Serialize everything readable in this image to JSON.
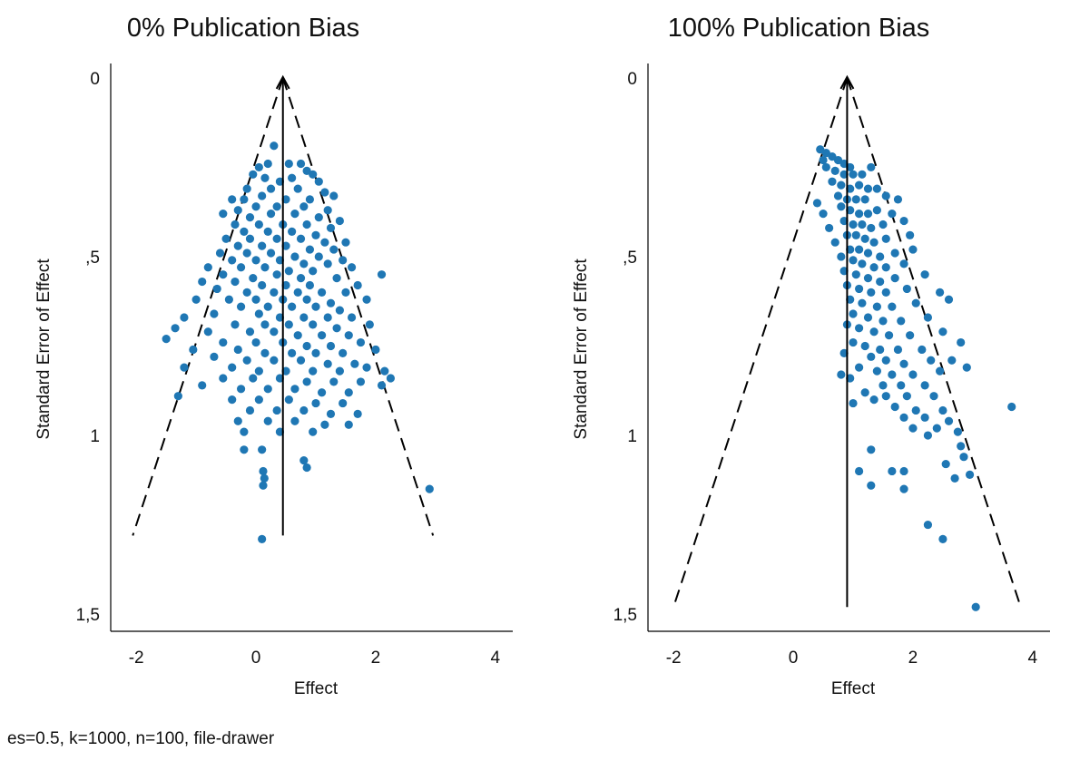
{
  "caption": "es=0.5, k=1000, n=100, file-drawer",
  "colors": {
    "points": "#1f77b4",
    "axes": "#000000"
  },
  "chart_data": [
    {
      "type": "scatter",
      "title": "0% Publication Bias",
      "xlabel": "Effect",
      "ylabel": "Standard Error of Effect",
      "xlim": [
        -2.2,
        4.2
      ],
      "ylim": [
        1.52,
        -0.02
      ],
      "y_inverted": true,
      "xticks": [
        -2,
        0,
        2,
        4
      ],
      "xtick_labels": [
        "-2",
        "0",
        "2",
        "4"
      ],
      "yticks": [
        0,
        0.5,
        1,
        1.5
      ],
      "ytick_labels": [
        "0",
        ",5",
        "1",
        "1,5"
      ],
      "funnel": {
        "center": 0.45,
        "se_max": 1.28
      },
      "points": [
        [
          0.3,
          0.19
        ],
        [
          0.05,
          0.25
        ],
        [
          0.2,
          0.24
        ],
        [
          0.55,
          0.24
        ],
        [
          0.75,
          0.24
        ],
        [
          0.85,
          0.26
        ],
        [
          0.95,
          0.27
        ],
        [
          -0.05,
          0.27
        ],
        [
          0.15,
          0.28
        ],
        [
          0.4,
          0.29
        ],
        [
          0.6,
          0.28
        ],
        [
          1.05,
          0.29
        ],
        [
          -0.15,
          0.31
        ],
        [
          0.25,
          0.31
        ],
        [
          0.7,
          0.31
        ],
        [
          1.15,
          0.32
        ],
        [
          1.3,
          0.33
        ],
        [
          -0.4,
          0.34
        ],
        [
          -0.2,
          0.34
        ],
        [
          0.1,
          0.33
        ],
        [
          0.5,
          0.34
        ],
        [
          0.9,
          0.34
        ],
        [
          -0.3,
          0.37
        ],
        [
          0.0,
          0.36
        ],
        [
          0.35,
          0.36
        ],
        [
          0.8,
          0.36
        ],
        [
          1.2,
          0.37
        ],
        [
          -0.55,
          0.38
        ],
        [
          -0.1,
          0.39
        ],
        [
          0.25,
          0.38
        ],
        [
          0.65,
          0.38
        ],
        [
          1.05,
          0.39
        ],
        [
          1.4,
          0.4
        ],
        [
          -0.35,
          0.41
        ],
        [
          0.05,
          0.41
        ],
        [
          0.45,
          0.41
        ],
        [
          0.85,
          0.41
        ],
        [
          1.25,
          0.42
        ],
        [
          -0.2,
          0.43
        ],
        [
          0.2,
          0.43
        ],
        [
          0.6,
          0.43
        ],
        [
          1.0,
          0.44
        ],
        [
          -0.5,
          0.45
        ],
        [
          -0.1,
          0.45
        ],
        [
          0.35,
          0.45
        ],
        [
          0.75,
          0.45
        ],
        [
          1.15,
          0.46
        ],
        [
          1.5,
          0.46
        ],
        [
          -0.3,
          0.47
        ],
        [
          0.1,
          0.47
        ],
        [
          0.5,
          0.47
        ],
        [
          0.9,
          0.48
        ],
        [
          1.3,
          0.48
        ],
        [
          -0.6,
          0.49
        ],
        [
          -0.15,
          0.49
        ],
        [
          0.25,
          0.49
        ],
        [
          0.65,
          0.5
        ],
        [
          1.05,
          0.5
        ],
        [
          1.45,
          0.51
        ],
        [
          -0.4,
          0.51
        ],
        [
          0.0,
          0.51
        ],
        [
          0.4,
          0.51
        ],
        [
          0.8,
          0.52
        ],
        [
          1.2,
          0.52
        ],
        [
          -0.8,
          0.53
        ],
        [
          -0.25,
          0.53
        ],
        [
          0.15,
          0.53
        ],
        [
          0.55,
          0.54
        ],
        [
          0.95,
          0.54
        ],
        [
          1.6,
          0.53
        ],
        [
          -0.55,
          0.55
        ],
        [
          -0.05,
          0.56
        ],
        [
          0.35,
          0.55
        ],
        [
          0.75,
          0.56
        ],
        [
          1.35,
          0.56
        ],
        [
          2.1,
          0.55
        ],
        [
          -0.9,
          0.57
        ],
        [
          -0.35,
          0.57
        ],
        [
          0.1,
          0.58
        ],
        [
          0.5,
          0.58
        ],
        [
          0.9,
          0.58
        ],
        [
          1.7,
          0.58
        ],
        [
          -0.65,
          0.59
        ],
        [
          -0.15,
          0.6
        ],
        [
          0.3,
          0.6
        ],
        [
          0.7,
          0.6
        ],
        [
          1.1,
          0.6
        ],
        [
          1.5,
          0.6
        ],
        [
          -1.0,
          0.62
        ],
        [
          -0.45,
          0.62
        ],
        [
          0.0,
          0.62
        ],
        [
          0.45,
          0.62
        ],
        [
          0.85,
          0.62
        ],
        [
          1.25,
          0.63
        ],
        [
          1.85,
          0.62
        ],
        [
          -0.25,
          0.64
        ],
        [
          0.2,
          0.64
        ],
        [
          0.6,
          0.64
        ],
        [
          1.0,
          0.64
        ],
        [
          1.4,
          0.65
        ],
        [
          -0.7,
          0.66
        ],
        [
          -1.2,
          0.67
        ],
        [
          0.05,
          0.66
        ],
        [
          0.4,
          0.67
        ],
        [
          0.8,
          0.67
        ],
        [
          1.2,
          0.67
        ],
        [
          1.6,
          0.67
        ],
        [
          -0.35,
          0.69
        ],
        [
          0.15,
          0.69
        ],
        [
          0.55,
          0.69
        ],
        [
          0.95,
          0.69
        ],
        [
          1.35,
          0.7
        ],
        [
          1.9,
          0.69
        ],
        [
          -1.35,
          0.7
        ],
        [
          -0.8,
          0.71
        ],
        [
          -0.1,
          0.71
        ],
        [
          0.3,
          0.71
        ],
        [
          0.7,
          0.72
        ],
        [
          1.1,
          0.72
        ],
        [
          1.55,
          0.72
        ],
        [
          -1.5,
          0.73
        ],
        [
          -0.55,
          0.74
        ],
        [
          0.0,
          0.74
        ],
        [
          0.45,
          0.74
        ],
        [
          0.85,
          0.75
        ],
        [
          1.25,
          0.75
        ],
        [
          1.75,
          0.74
        ],
        [
          -1.05,
          0.76
        ],
        [
          -0.3,
          0.76
        ],
        [
          0.15,
          0.77
        ],
        [
          0.6,
          0.77
        ],
        [
          1.0,
          0.77
        ],
        [
          1.45,
          0.77
        ],
        [
          2.0,
          0.76
        ],
        [
          -0.7,
          0.78
        ],
        [
          -0.15,
          0.79
        ],
        [
          0.3,
          0.79
        ],
        [
          0.75,
          0.79
        ],
        [
          1.2,
          0.8
        ],
        [
          1.65,
          0.8
        ],
        [
          -1.2,
          0.81
        ],
        [
          -0.4,
          0.81
        ],
        [
          0.05,
          0.82
        ],
        [
          0.5,
          0.82
        ],
        [
          0.95,
          0.82
        ],
        [
          1.4,
          0.82
        ],
        [
          1.85,
          0.81
        ],
        [
          2.15,
          0.82
        ],
        [
          -0.55,
          0.84
        ],
        [
          -0.05,
          0.84
        ],
        [
          0.4,
          0.84
        ],
        [
          0.85,
          0.85
        ],
        [
          1.3,
          0.85
        ],
        [
          1.75,
          0.85
        ],
        [
          2.25,
          0.84
        ],
        [
          -0.9,
          0.86
        ],
        [
          -0.25,
          0.87
        ],
        [
          0.2,
          0.87
        ],
        [
          0.65,
          0.87
        ],
        [
          1.1,
          0.88
        ],
        [
          1.55,
          0.88
        ],
        [
          2.1,
          0.86
        ],
        [
          -1.3,
          0.89
        ],
        [
          -0.4,
          0.9
        ],
        [
          0.05,
          0.9
        ],
        [
          0.55,
          0.9
        ],
        [
          1.0,
          0.91
        ],
        [
          1.45,
          0.91
        ],
        [
          -0.1,
          0.93
        ],
        [
          0.35,
          0.93
        ],
        [
          0.8,
          0.93
        ],
        [
          1.25,
          0.94
        ],
        [
          1.7,
          0.94
        ],
        [
          -0.3,
          0.96
        ],
        [
          0.2,
          0.96
        ],
        [
          0.65,
          0.96
        ],
        [
          1.15,
          0.97
        ],
        [
          1.55,
          0.97
        ],
        [
          -0.2,
          0.99
        ],
        [
          0.4,
          0.99
        ],
        [
          0.95,
          0.99
        ],
        [
          -0.2,
          1.04
        ],
        [
          0.1,
          1.04
        ],
        [
          0.8,
          1.07
        ],
        [
          0.12,
          1.1
        ],
        [
          0.85,
          1.09
        ],
        [
          0.14,
          1.12
        ],
        [
          0.12,
          1.14
        ],
        [
          2.9,
          1.15
        ],
        [
          0.1,
          1.29
        ]
      ]
    },
    {
      "type": "scatter",
      "title": "100% Publication Bias",
      "xlabel": "Effect",
      "ylabel": "Standard Error of Effect",
      "xlim": [
        -2.2,
        4.2
      ],
      "ylim": [
        1.52,
        -0.02
      ],
      "y_inverted": true,
      "xticks": [
        -2,
        0,
        2,
        4
      ],
      "xtick_labels": [
        "-2",
        "0",
        "2",
        "4"
      ],
      "yticks": [
        0,
        0.5,
        1,
        1.5
      ],
      "ytick_labels": [
        "0",
        ",5",
        "1",
        "1,5"
      ],
      "funnel": {
        "center": 0.9,
        "se_max": 1.48
      },
      "points": [
        [
          0.45,
          0.2
        ],
        [
          0.55,
          0.21
        ],
        [
          0.5,
          0.23
        ],
        [
          0.65,
          0.22
        ],
        [
          0.75,
          0.23
        ],
        [
          0.85,
          0.24
        ],
        [
          0.95,
          0.25
        ],
        [
          0.55,
          0.25
        ],
        [
          0.7,
          0.26
        ],
        [
          0.85,
          0.27
        ],
        [
          1.0,
          0.27
        ],
        [
          1.15,
          0.27
        ],
        [
          1.3,
          0.25
        ],
        [
          0.65,
          0.29
        ],
        [
          0.8,
          0.3
        ],
        [
          0.95,
          0.31
        ],
        [
          1.1,
          0.3
        ],
        [
          1.25,
          0.31
        ],
        [
          1.4,
          0.31
        ],
        [
          0.75,
          0.33
        ],
        [
          0.9,
          0.34
        ],
        [
          1.05,
          0.34
        ],
        [
          1.2,
          0.34
        ],
        [
          1.55,
          0.33
        ],
        [
          1.75,
          0.34
        ],
        [
          0.4,
          0.35
        ],
        [
          0.8,
          0.36
        ],
        [
          0.95,
          0.37
        ],
        [
          1.1,
          0.38
        ],
        [
          1.25,
          0.38
        ],
        [
          1.4,
          0.37
        ],
        [
          1.65,
          0.38
        ],
        [
          0.5,
          0.38
        ],
        [
          0.85,
          0.4
        ],
        [
          1.0,
          0.41
        ],
        [
          1.15,
          0.41
        ],
        [
          1.3,
          0.42
        ],
        [
          1.5,
          0.41
        ],
        [
          1.85,
          0.4
        ],
        [
          0.6,
          0.42
        ],
        [
          0.9,
          0.44
        ],
        [
          1.05,
          0.44
        ],
        [
          1.2,
          0.45
        ],
        [
          1.35,
          0.46
        ],
        [
          1.55,
          0.45
        ],
        [
          1.95,
          0.44
        ],
        [
          0.7,
          0.46
        ],
        [
          0.95,
          0.48
        ],
        [
          1.1,
          0.48
        ],
        [
          1.25,
          0.49
        ],
        [
          1.45,
          0.5
        ],
        [
          1.7,
          0.49
        ],
        [
          2.0,
          0.48
        ],
        [
          0.8,
          0.5
        ],
        [
          1.0,
          0.51
        ],
        [
          1.15,
          0.52
        ],
        [
          1.35,
          0.53
        ],
        [
          1.55,
          0.53
        ],
        [
          1.85,
          0.52
        ],
        [
          0.85,
          0.54
        ],
        [
          1.05,
          0.55
        ],
        [
          1.25,
          0.56
        ],
        [
          1.45,
          0.57
        ],
        [
          1.7,
          0.56
        ],
        [
          2.2,
          0.55
        ],
        [
          0.9,
          0.58
        ],
        [
          1.1,
          0.59
        ],
        [
          1.3,
          0.6
        ],
        [
          1.55,
          0.6
        ],
        [
          1.9,
          0.59
        ],
        [
          2.45,
          0.6
        ],
        [
          0.95,
          0.62
        ],
        [
          1.15,
          0.63
        ],
        [
          1.4,
          0.64
        ],
        [
          1.65,
          0.64
        ],
        [
          2.05,
          0.63
        ],
        [
          2.6,
          0.62
        ],
        [
          1.0,
          0.66
        ],
        [
          1.25,
          0.67
        ],
        [
          1.5,
          0.68
        ],
        [
          1.8,
          0.68
        ],
        [
          2.25,
          0.67
        ],
        [
          0.9,
          0.69
        ],
        [
          1.1,
          0.7
        ],
        [
          1.35,
          0.71
        ],
        [
          1.6,
          0.72
        ],
        [
          1.95,
          0.72
        ],
        [
          2.5,
          0.71
        ],
        [
          1.0,
          0.74
        ],
        [
          1.2,
          0.75
        ],
        [
          1.45,
          0.76
        ],
        [
          1.75,
          0.76
        ],
        [
          2.15,
          0.76
        ],
        [
          2.8,
          0.74
        ],
        [
          0.85,
          0.77
        ],
        [
          1.3,
          0.78
        ],
        [
          1.55,
          0.79
        ],
        [
          1.85,
          0.8
        ],
        [
          2.3,
          0.79
        ],
        [
          2.65,
          0.79
        ],
        [
          1.1,
          0.81
        ],
        [
          1.4,
          0.82
        ],
        [
          1.65,
          0.83
        ],
        [
          2.0,
          0.83
        ],
        [
          2.45,
          0.82
        ],
        [
          2.9,
          0.81
        ],
        [
          0.8,
          0.83
        ],
        [
          0.95,
          0.84
        ],
        [
          1.5,
          0.86
        ],
        [
          1.8,
          0.86
        ],
        [
          2.2,
          0.86
        ],
        [
          1.2,
          0.88
        ],
        [
          1.55,
          0.89
        ],
        [
          1.9,
          0.89
        ],
        [
          2.35,
          0.89
        ],
        [
          1.0,
          0.91
        ],
        [
          1.35,
          0.9
        ],
        [
          1.7,
          0.92
        ],
        [
          2.05,
          0.93
        ],
        [
          2.5,
          0.93
        ],
        [
          3.65,
          0.92
        ],
        [
          1.85,
          0.95
        ],
        [
          2.2,
          0.95
        ],
        [
          2.6,
          0.96
        ],
        [
          2.0,
          0.98
        ],
        [
          2.4,
          0.98
        ],
        [
          2.75,
          0.99
        ],
        [
          2.25,
          1.0
        ],
        [
          2.8,
          1.03
        ],
        [
          1.3,
          1.04
        ],
        [
          2.85,
          1.06
        ],
        [
          2.55,
          1.08
        ],
        [
          1.65,
          1.1
        ],
        [
          1.1,
          1.1
        ],
        [
          1.85,
          1.1
        ],
        [
          2.95,
          1.11
        ],
        [
          2.7,
          1.12
        ],
        [
          1.85,
          1.15
        ],
        [
          1.3,
          1.14
        ],
        [
          2.25,
          1.25
        ],
        [
          2.5,
          1.29
        ],
        [
          3.05,
          1.48
        ]
      ]
    }
  ]
}
